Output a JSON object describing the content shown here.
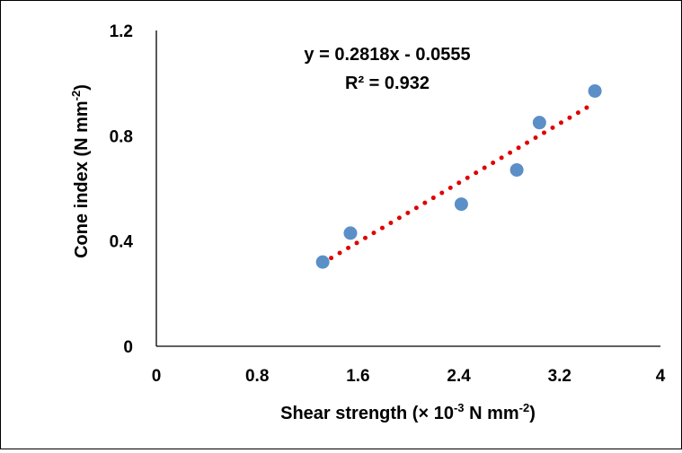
{
  "chart_data": {
    "type": "scatter",
    "title": "",
    "xlabel": {
      "main": "Shear strength (× 10",
      "sup1": "-3",
      "mid": " N mm",
      "sup2": "-2",
      "end": ")"
    },
    "ylabel": {
      "main": "Cone index (N mm",
      "sup": "-2",
      "end": ")"
    },
    "xlim": [
      0,
      4
    ],
    "ylim": [
      0,
      1.2
    ],
    "xticks": [
      0,
      0.8,
      1.6,
      2.4,
      3.2,
      4
    ],
    "xtick_labels": [
      "0",
      "0.8",
      "1.6",
      "2.4",
      "3.2",
      "4"
    ],
    "yticks": [
      0,
      0.4,
      0.8,
      1.2
    ],
    "ytick_labels": [
      "0",
      "0.4",
      "0.8",
      "1.2"
    ],
    "grid": false,
    "points": {
      "x": [
        1.32,
        1.54,
        2.42,
        2.86,
        3.04,
        3.48
      ],
      "y": [
        0.32,
        0.43,
        0.54,
        0.67,
        0.85,
        0.97
      ]
    },
    "trendline": {
      "type": "linear",
      "slope": 0.2818,
      "intercept": -0.0555,
      "x_range": [
        1.32,
        3.48
      ],
      "equation": "y = 0.2818x - 0.0555",
      "r_squared": "R² = 0.932"
    },
    "colors": {
      "points": "#5b8fc7",
      "trendline": "#e00000",
      "axis": "#000000"
    }
  }
}
